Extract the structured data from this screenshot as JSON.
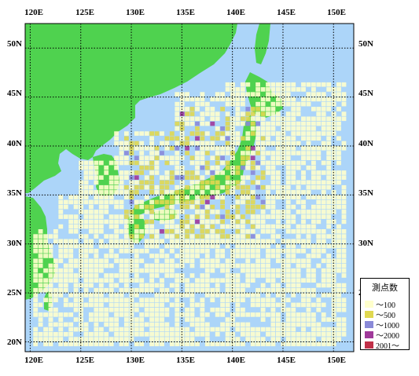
{
  "map": {
    "lon_range": [
      119.5,
      152.0
    ],
    "lat_range": [
      19.0,
      52.5
    ],
    "lon_labels": [
      "120E",
      "125E",
      "130E",
      "135E",
      "140E",
      "145E",
      "150E"
    ],
    "lat_labels": [
      "50N",
      "45N",
      "40N",
      "35N",
      "30N",
      "25N",
      "20N"
    ],
    "colors": {
      "sea": "#acd5f9",
      "land": "#4fd24f",
      "grid_line": "#000000"
    }
  },
  "legend": {
    "title": "測点数",
    "items": [
      {
        "label": "～100",
        "color": "#ffffcc"
      },
      {
        "label": "～500",
        "color": "#e0d850"
      },
      {
        "label": "～1000",
        "color": "#8a8ad8"
      },
      {
        "label": "～2000",
        "color": "#a03a9a"
      },
      {
        "label": "2001～",
        "color": "#c03048"
      }
    ]
  }
}
